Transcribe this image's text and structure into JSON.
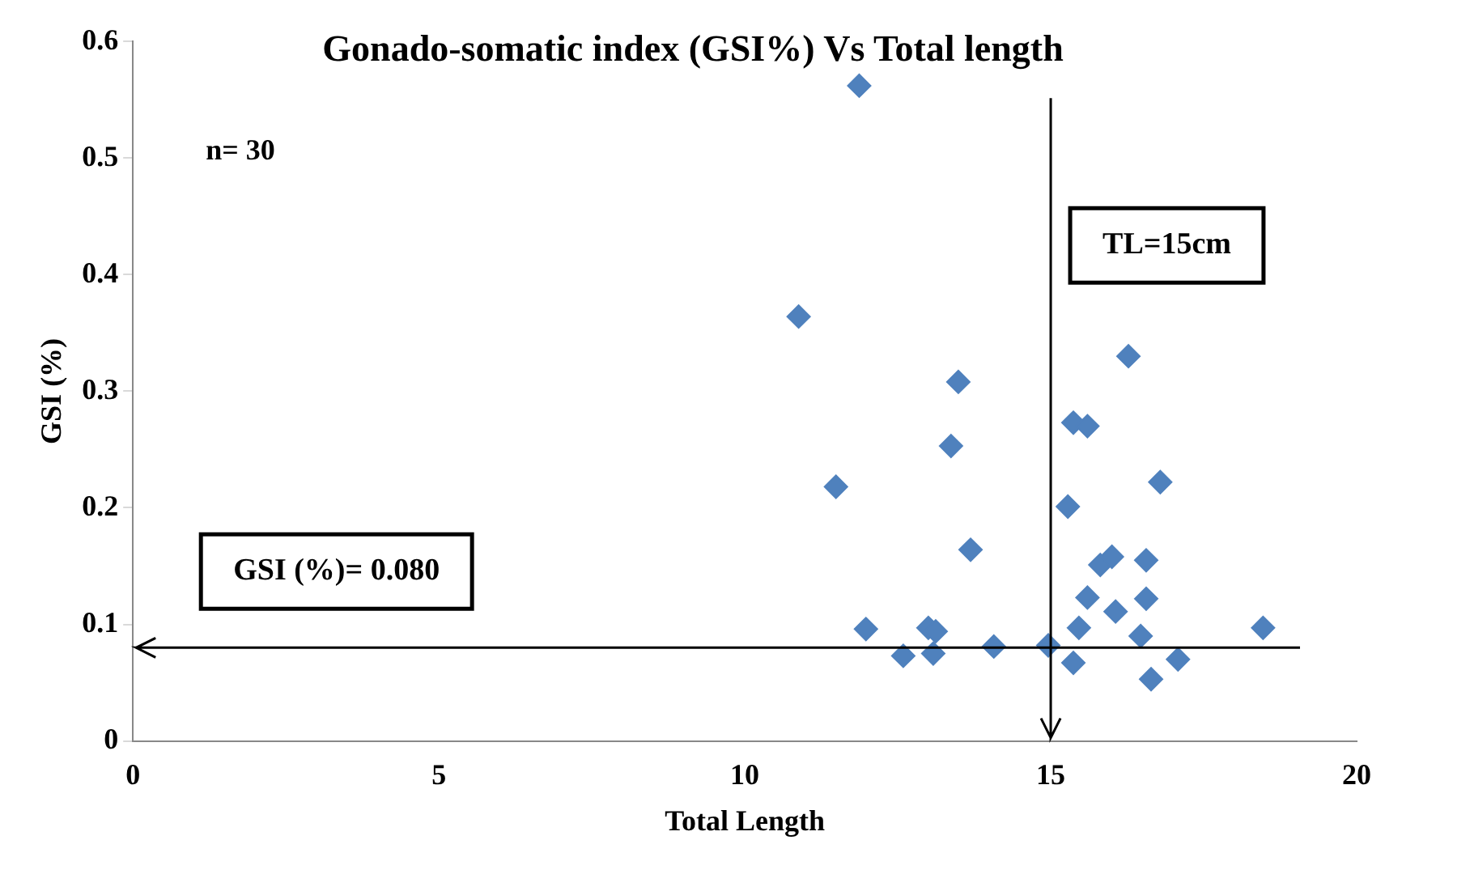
{
  "chart_data": {
    "type": "scatter",
    "title": "Gonado-somatic index (GSI%) Vs Total length",
    "xlabel": "Total Length",
    "ylabel": "GSI (%)",
    "x": [
      11.87,
      10.88,
      11.49,
      13.49,
      13.37,
      13.69,
      11.98,
      13.0,
      13.12,
      12.59,
      13.08,
      14.07,
      14.96,
      15.37,
      15.46,
      15.28,
      15.37,
      15.6,
      16.27,
      16.79,
      15.81,
      16.0,
      16.56,
      15.6,
      16.56,
      16.06,
      16.47,
      17.08,
      16.64,
      18.47
    ],
    "series": [
      {
        "color": "#4f81bd",
        "values": [
          0.562,
          0.364,
          0.218,
          0.308,
          0.253,
          0.164,
          0.096,
          0.097,
          0.094,
          0.073,
          0.075,
          0.081,
          0.082,
          0.067,
          0.097,
          0.201,
          0.273,
          0.27,
          0.33,
          0.222,
          0.151,
          0.158,
          0.155,
          0.123,
          0.122,
          0.111,
          0.09,
          0.07,
          0.053,
          0.097
        ]
      }
    ],
    "xlim": [
      0,
      20
    ],
    "xticks": [
      0,
      5,
      10,
      15,
      20
    ],
    "ylim": [
      0,
      0.6
    ],
    "yticks": [
      0,
      0.1,
      0.2,
      0.3,
      0.4,
      0.5,
      0.6
    ],
    "grid": false,
    "legend": false,
    "marker": "diamond",
    "ref_lines": [
      {
        "axis": "y",
        "value": 0.08,
        "label": "GSI (%)= 0.080"
      },
      {
        "axis": "x",
        "value": 15,
        "label": "TL=15cm"
      }
    ],
    "annotations": [
      "n= 30"
    ]
  }
}
